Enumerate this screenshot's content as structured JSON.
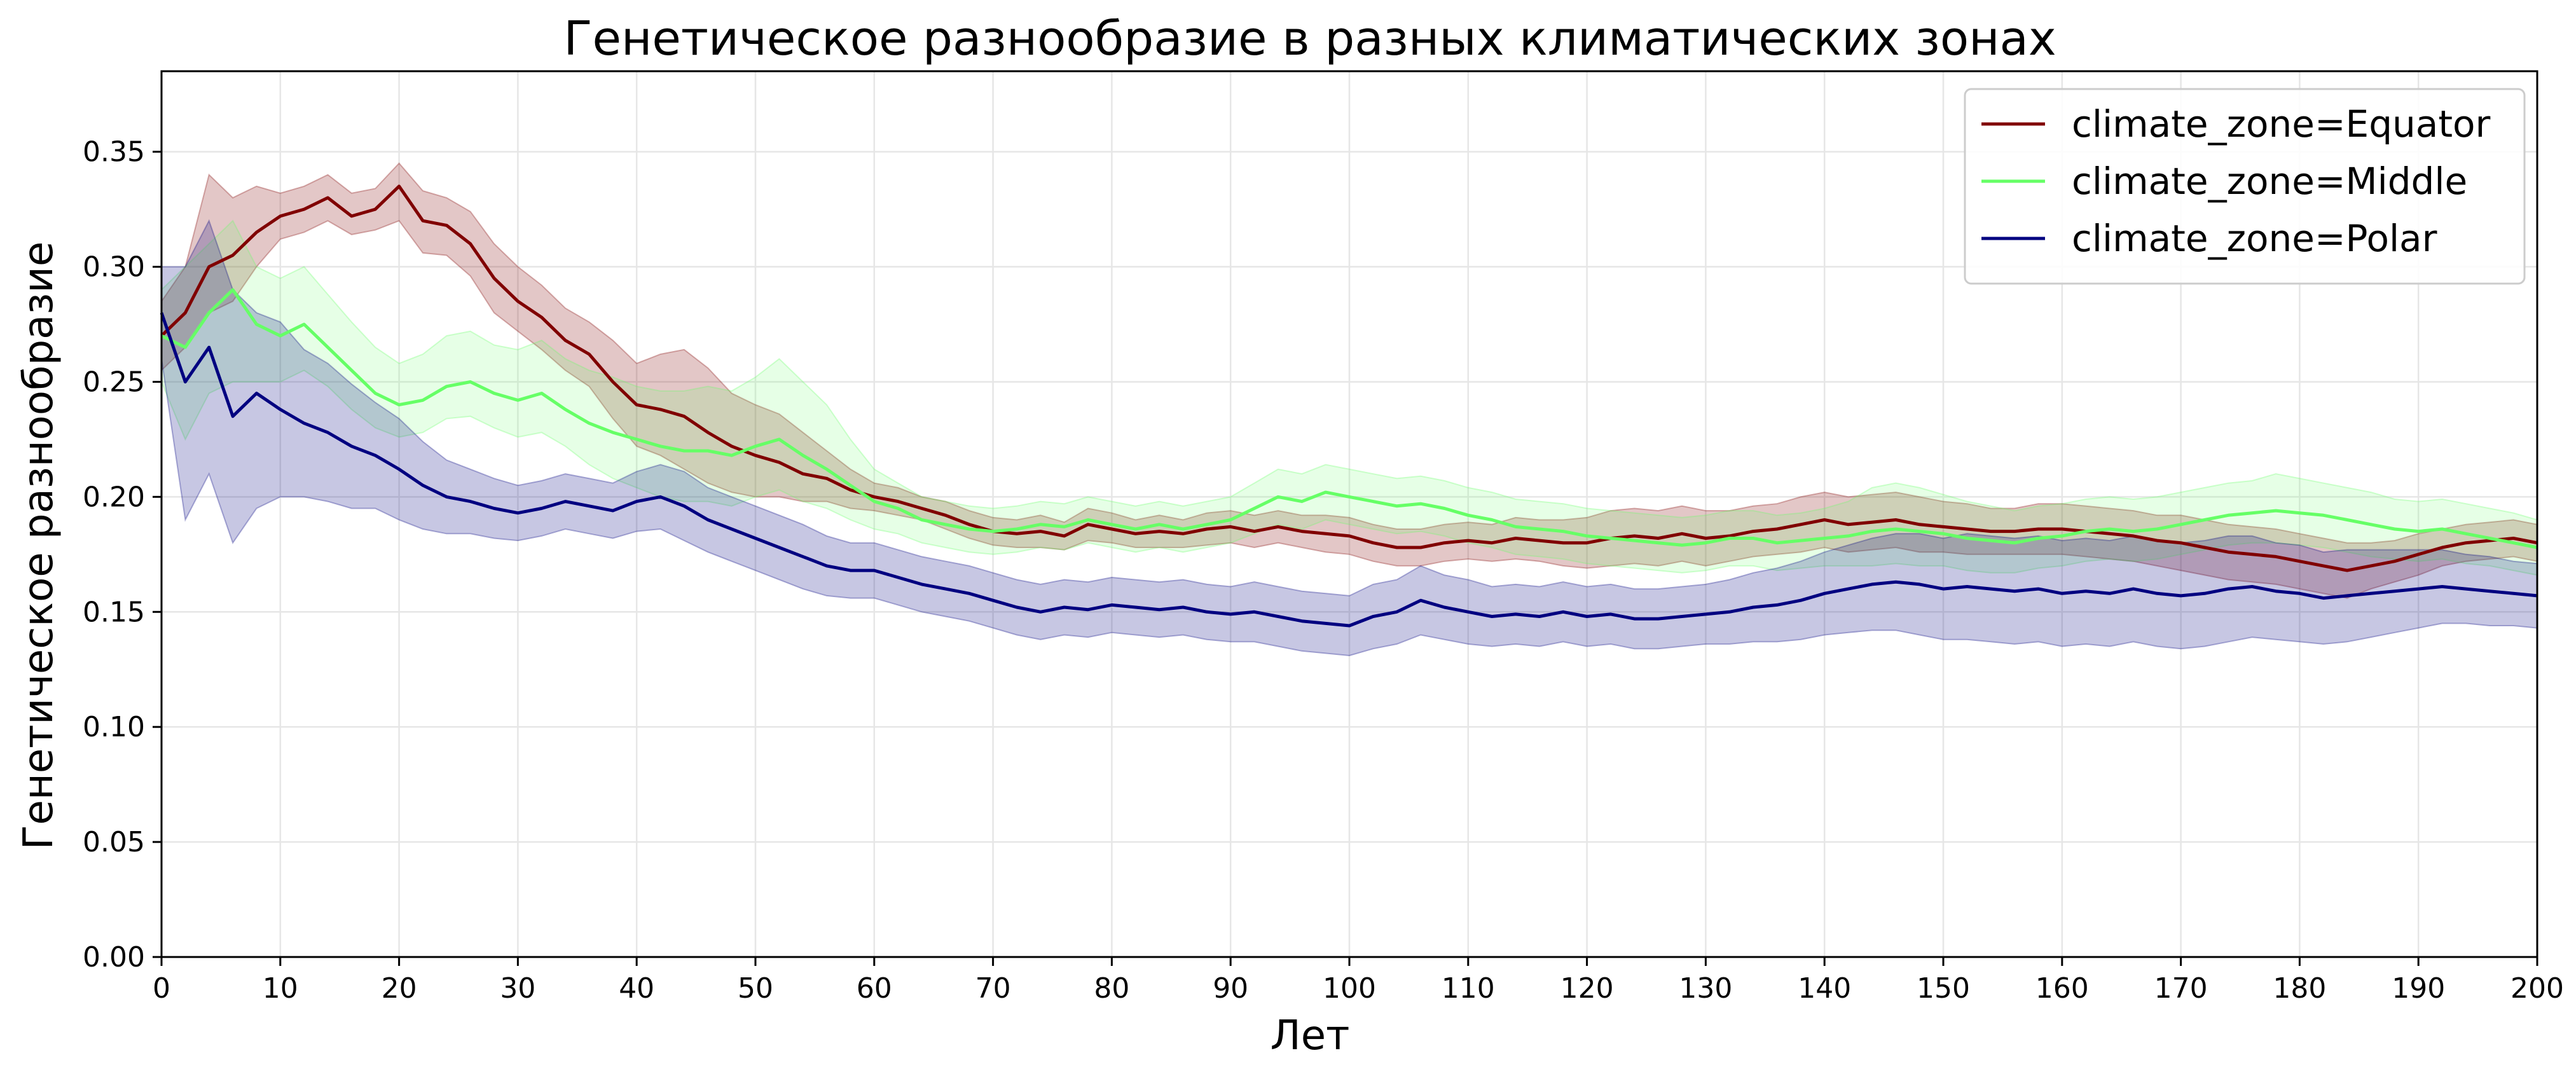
{
  "chart_data": {
    "type": "line",
    "title": "Генетическое разнообразие в разных климатических зонах",
    "xlabel": "Лет",
    "ylabel": "Генетическое разнообразие",
    "xlim": [
      0,
      200
    ],
    "ylim": [
      0,
      0.385
    ],
    "x_ticks": [
      0,
      10,
      20,
      30,
      40,
      50,
      60,
      70,
      80,
      90,
      100,
      110,
      120,
      130,
      140,
      150,
      160,
      170,
      180,
      190,
      200
    ],
    "y_ticks": [
      0.0,
      0.05,
      0.1,
      0.15,
      0.2,
      0.25,
      0.3,
      0.35
    ],
    "y_tick_labels": [
      "0.00",
      "0.05",
      "0.10",
      "0.15",
      "0.20",
      "0.25",
      "0.30",
      "0.35"
    ],
    "grid": true,
    "legend_position": "top-right",
    "x": [
      0,
      2,
      4,
      6,
      8,
      10,
      12,
      14,
      16,
      18,
      20,
      22,
      24,
      26,
      28,
      30,
      32,
      34,
      36,
      38,
      40,
      42,
      44,
      46,
      48,
      50,
      52,
      54,
      56,
      58,
      60,
      62,
      64,
      66,
      68,
      70,
      72,
      74,
      76,
      78,
      80,
      82,
      84,
      86,
      88,
      90,
      92,
      94,
      96,
      98,
      100,
      102,
      104,
      106,
      108,
      110,
      112,
      114,
      116,
      118,
      120,
      122,
      124,
      126,
      128,
      130,
      132,
      134,
      136,
      138,
      140,
      142,
      144,
      146,
      148,
      150,
      152,
      154,
      156,
      158,
      160,
      162,
      164,
      166,
      168,
      170,
      172,
      174,
      176,
      178,
      180,
      182,
      184,
      186,
      188,
      190,
      192,
      194,
      196,
      198,
      200
    ],
    "series": [
      {
        "name": "climate_zone=Equator",
        "color": "#800000",
        "values": [
          0.27,
          0.28,
          0.3,
          0.305,
          0.315,
          0.322,
          0.325,
          0.33,
          0.322,
          0.325,
          0.335,
          0.32,
          0.318,
          0.31,
          0.295,
          0.285,
          0.278,
          0.268,
          0.262,
          0.25,
          0.24,
          0.238,
          0.235,
          0.228,
          0.222,
          0.218,
          0.215,
          0.21,
          0.208,
          0.203,
          0.2,
          0.198,
          0.195,
          0.192,
          0.188,
          0.185,
          0.184,
          0.185,
          0.183,
          0.188,
          0.186,
          0.184,
          0.185,
          0.184,
          0.186,
          0.187,
          0.185,
          0.187,
          0.185,
          0.184,
          0.183,
          0.18,
          0.178,
          0.178,
          0.18,
          0.181,
          0.18,
          0.182,
          0.181,
          0.18,
          0.18,
          0.182,
          0.183,
          0.182,
          0.184,
          0.182,
          0.183,
          0.185,
          0.186,
          0.188,
          0.19,
          0.188,
          0.189,
          0.19,
          0.188,
          0.187,
          0.186,
          0.185,
          0.185,
          0.186,
          0.186,
          0.185,
          0.184,
          0.183,
          0.181,
          0.18,
          0.178,
          0.176,
          0.175,
          0.174,
          0.172,
          0.17,
          0.168,
          0.17,
          0.172,
          0.175,
          0.178,
          0.18,
          0.181,
          0.182,
          0.18
        ],
        "band_low": [
          0.255,
          0.265,
          0.28,
          0.285,
          0.3,
          0.312,
          0.315,
          0.32,
          0.314,
          0.316,
          0.32,
          0.306,
          0.305,
          0.296,
          0.28,
          0.272,
          0.264,
          0.255,
          0.248,
          0.234,
          0.222,
          0.218,
          0.212,
          0.206,
          0.202,
          0.2,
          0.2,
          0.198,
          0.198,
          0.195,
          0.194,
          0.192,
          0.19,
          0.186,
          0.182,
          0.179,
          0.178,
          0.178,
          0.177,
          0.181,
          0.18,
          0.178,
          0.178,
          0.178,
          0.179,
          0.18,
          0.178,
          0.18,
          0.178,
          0.176,
          0.175,
          0.172,
          0.17,
          0.17,
          0.172,
          0.173,
          0.172,
          0.173,
          0.172,
          0.17,
          0.169,
          0.17,
          0.171,
          0.17,
          0.172,
          0.17,
          0.172,
          0.174,
          0.175,
          0.176,
          0.178,
          0.176,
          0.177,
          0.178,
          0.176,
          0.176,
          0.175,
          0.175,
          0.175,
          0.175,
          0.175,
          0.174,
          0.173,
          0.172,
          0.17,
          0.168,
          0.166,
          0.164,
          0.163,
          0.162,
          0.16,
          0.158,
          0.156,
          0.16,
          0.163,
          0.166,
          0.17,
          0.172,
          0.173,
          0.174,
          0.172
        ],
        "band_high": [
          0.285,
          0.3,
          0.34,
          0.33,
          0.335,
          0.332,
          0.335,
          0.34,
          0.332,
          0.334,
          0.345,
          0.333,
          0.33,
          0.324,
          0.31,
          0.3,
          0.292,
          0.282,
          0.276,
          0.268,
          0.258,
          0.262,
          0.264,
          0.256,
          0.245,
          0.24,
          0.236,
          0.228,
          0.22,
          0.212,
          0.206,
          0.204,
          0.2,
          0.198,
          0.194,
          0.191,
          0.19,
          0.192,
          0.189,
          0.195,
          0.193,
          0.19,
          0.192,
          0.19,
          0.193,
          0.194,
          0.192,
          0.194,
          0.192,
          0.192,
          0.191,
          0.188,
          0.186,
          0.186,
          0.188,
          0.189,
          0.188,
          0.191,
          0.19,
          0.19,
          0.191,
          0.194,
          0.195,
          0.194,
          0.196,
          0.194,
          0.194,
          0.196,
          0.197,
          0.2,
          0.202,
          0.2,
          0.201,
          0.202,
          0.2,
          0.198,
          0.197,
          0.195,
          0.195,
          0.197,
          0.197,
          0.196,
          0.195,
          0.194,
          0.192,
          0.192,
          0.19,
          0.188,
          0.187,
          0.186,
          0.184,
          0.182,
          0.18,
          0.18,
          0.181,
          0.184,
          0.186,
          0.188,
          0.189,
          0.19,
          0.188
        ]
      },
      {
        "name": "climate_zone=Middle",
        "color": "#66ff66",
        "values": [
          0.27,
          0.265,
          0.28,
          0.29,
          0.275,
          0.27,
          0.275,
          0.265,
          0.255,
          0.245,
          0.24,
          0.242,
          0.248,
          0.25,
          0.245,
          0.242,
          0.245,
          0.238,
          0.232,
          0.228,
          0.225,
          0.222,
          0.22,
          0.22,
          0.218,
          0.222,
          0.225,
          0.218,
          0.212,
          0.205,
          0.198,
          0.195,
          0.19,
          0.188,
          0.186,
          0.185,
          0.186,
          0.188,
          0.187,
          0.19,
          0.188,
          0.186,
          0.188,
          0.186,
          0.188,
          0.19,
          0.195,
          0.2,
          0.198,
          0.202,
          0.2,
          0.198,
          0.196,
          0.197,
          0.195,
          0.192,
          0.19,
          0.187,
          0.186,
          0.185,
          0.183,
          0.182,
          0.181,
          0.18,
          0.179,
          0.18,
          0.182,
          0.182,
          0.18,
          0.181,
          0.182,
          0.183,
          0.185,
          0.186,
          0.185,
          0.184,
          0.182,
          0.181,
          0.18,
          0.182,
          0.183,
          0.185,
          0.186,
          0.185,
          0.186,
          0.188,
          0.19,
          0.192,
          0.193,
          0.194,
          0.193,
          0.192,
          0.19,
          0.188,
          0.186,
          0.185,
          0.186,
          0.184,
          0.182,
          0.18,
          0.178
        ],
        "band_low": [
          0.25,
          0.225,
          0.245,
          0.25,
          0.25,
          0.25,
          0.255,
          0.248,
          0.238,
          0.23,
          0.226,
          0.228,
          0.234,
          0.235,
          0.23,
          0.226,
          0.228,
          0.222,
          0.214,
          0.208,
          0.204,
          0.2,
          0.198,
          0.198,
          0.196,
          0.2,
          0.203,
          0.198,
          0.195,
          0.19,
          0.186,
          0.184,
          0.18,
          0.178,
          0.176,
          0.175,
          0.176,
          0.178,
          0.177,
          0.18,
          0.178,
          0.176,
          0.178,
          0.176,
          0.178,
          0.18,
          0.184,
          0.188,
          0.186,
          0.19,
          0.188,
          0.186,
          0.184,
          0.185,
          0.183,
          0.18,
          0.178,
          0.175,
          0.174,
          0.173,
          0.171,
          0.17,
          0.169,
          0.168,
          0.167,
          0.168,
          0.17,
          0.17,
          0.168,
          0.169,
          0.17,
          0.17,
          0.17,
          0.171,
          0.17,
          0.17,
          0.168,
          0.167,
          0.167,
          0.169,
          0.17,
          0.172,
          0.173,
          0.172,
          0.173,
          0.175,
          0.177,
          0.179,
          0.18,
          0.18,
          0.179,
          0.178,
          0.176,
          0.174,
          0.173,
          0.172,
          0.173,
          0.171,
          0.17,
          0.168,
          0.166
        ],
        "band_high": [
          0.29,
          0.3,
          0.31,
          0.32,
          0.3,
          0.295,
          0.3,
          0.288,
          0.276,
          0.265,
          0.258,
          0.262,
          0.27,
          0.272,
          0.266,
          0.264,
          0.268,
          0.26,
          0.255,
          0.252,
          0.248,
          0.246,
          0.246,
          0.248,
          0.246,
          0.252,
          0.26,
          0.25,
          0.24,
          0.225,
          0.212,
          0.206,
          0.2,
          0.198,
          0.196,
          0.195,
          0.196,
          0.198,
          0.197,
          0.2,
          0.198,
          0.196,
          0.198,
          0.196,
          0.198,
          0.2,
          0.206,
          0.212,
          0.21,
          0.214,
          0.212,
          0.21,
          0.208,
          0.209,
          0.207,
          0.204,
          0.202,
          0.199,
          0.198,
          0.197,
          0.195,
          0.194,
          0.193,
          0.192,
          0.191,
          0.192,
          0.194,
          0.194,
          0.192,
          0.193,
          0.195,
          0.198,
          0.204,
          0.206,
          0.204,
          0.201,
          0.198,
          0.196,
          0.194,
          0.196,
          0.197,
          0.199,
          0.2,
          0.199,
          0.2,
          0.202,
          0.204,
          0.206,
          0.207,
          0.21,
          0.208,
          0.206,
          0.204,
          0.202,
          0.199,
          0.198,
          0.199,
          0.197,
          0.195,
          0.193,
          0.19
        ]
      },
      {
        "name": "climate_zone=Polar",
        "color": "#000080",
        "values": [
          0.28,
          0.25,
          0.265,
          0.235,
          0.245,
          0.238,
          0.232,
          0.228,
          0.222,
          0.218,
          0.212,
          0.205,
          0.2,
          0.198,
          0.195,
          0.193,
          0.195,
          0.198,
          0.196,
          0.194,
          0.198,
          0.2,
          0.196,
          0.19,
          0.186,
          0.182,
          0.178,
          0.174,
          0.17,
          0.168,
          0.168,
          0.165,
          0.162,
          0.16,
          0.158,
          0.155,
          0.152,
          0.15,
          0.152,
          0.151,
          0.153,
          0.152,
          0.151,
          0.152,
          0.15,
          0.149,
          0.15,
          0.148,
          0.146,
          0.145,
          0.144,
          0.148,
          0.15,
          0.155,
          0.152,
          0.15,
          0.148,
          0.149,
          0.148,
          0.15,
          0.148,
          0.149,
          0.147,
          0.147,
          0.148,
          0.149,
          0.15,
          0.152,
          0.153,
          0.155,
          0.158,
          0.16,
          0.162,
          0.163,
          0.162,
          0.16,
          0.161,
          0.16,
          0.159,
          0.16,
          0.158,
          0.159,
          0.158,
          0.16,
          0.158,
          0.157,
          0.158,
          0.16,
          0.161,
          0.159,
          0.158,
          0.156,
          0.157,
          0.158,
          0.159,
          0.16,
          0.161,
          0.16,
          0.159,
          0.158,
          0.157
        ],
        "band_low": [
          0.26,
          0.19,
          0.21,
          0.18,
          0.195,
          0.2,
          0.2,
          0.198,
          0.195,
          0.195,
          0.19,
          0.186,
          0.184,
          0.184,
          0.182,
          0.181,
          0.183,
          0.186,
          0.184,
          0.182,
          0.185,
          0.186,
          0.181,
          0.176,
          0.172,
          0.168,
          0.164,
          0.16,
          0.157,
          0.156,
          0.156,
          0.153,
          0.15,
          0.148,
          0.146,
          0.143,
          0.14,
          0.138,
          0.14,
          0.139,
          0.141,
          0.14,
          0.139,
          0.14,
          0.138,
          0.137,
          0.137,
          0.135,
          0.133,
          0.132,
          0.131,
          0.134,
          0.136,
          0.14,
          0.138,
          0.136,
          0.135,
          0.136,
          0.135,
          0.137,
          0.135,
          0.136,
          0.134,
          0.134,
          0.135,
          0.136,
          0.136,
          0.137,
          0.137,
          0.138,
          0.14,
          0.141,
          0.142,
          0.142,
          0.14,
          0.138,
          0.138,
          0.137,
          0.136,
          0.137,
          0.135,
          0.136,
          0.135,
          0.137,
          0.135,
          0.134,
          0.135,
          0.137,
          0.139,
          0.138,
          0.137,
          0.136,
          0.137,
          0.139,
          0.141,
          0.143,
          0.145,
          0.145,
          0.144,
          0.144,
          0.143
        ],
        "band_high": [
          0.3,
          0.3,
          0.32,
          0.29,
          0.28,
          0.276,
          0.264,
          0.258,
          0.249,
          0.241,
          0.234,
          0.224,
          0.216,
          0.212,
          0.208,
          0.205,
          0.207,
          0.21,
          0.208,
          0.206,
          0.211,
          0.214,
          0.211,
          0.204,
          0.2,
          0.196,
          0.192,
          0.188,
          0.183,
          0.18,
          0.18,
          0.177,
          0.174,
          0.172,
          0.17,
          0.167,
          0.164,
          0.162,
          0.164,
          0.163,
          0.165,
          0.164,
          0.163,
          0.164,
          0.162,
          0.161,
          0.163,
          0.161,
          0.159,
          0.158,
          0.157,
          0.162,
          0.164,
          0.17,
          0.166,
          0.164,
          0.161,
          0.162,
          0.161,
          0.163,
          0.161,
          0.162,
          0.16,
          0.16,
          0.161,
          0.162,
          0.164,
          0.167,
          0.169,
          0.172,
          0.176,
          0.179,
          0.182,
          0.184,
          0.184,
          0.182,
          0.184,
          0.183,
          0.182,
          0.183,
          0.181,
          0.182,
          0.181,
          0.183,
          0.181,
          0.18,
          0.181,
          0.183,
          0.183,
          0.18,
          0.179,
          0.176,
          0.177,
          0.177,
          0.177,
          0.177,
          0.177,
          0.175,
          0.174,
          0.172,
          0.171
        ]
      }
    ]
  }
}
